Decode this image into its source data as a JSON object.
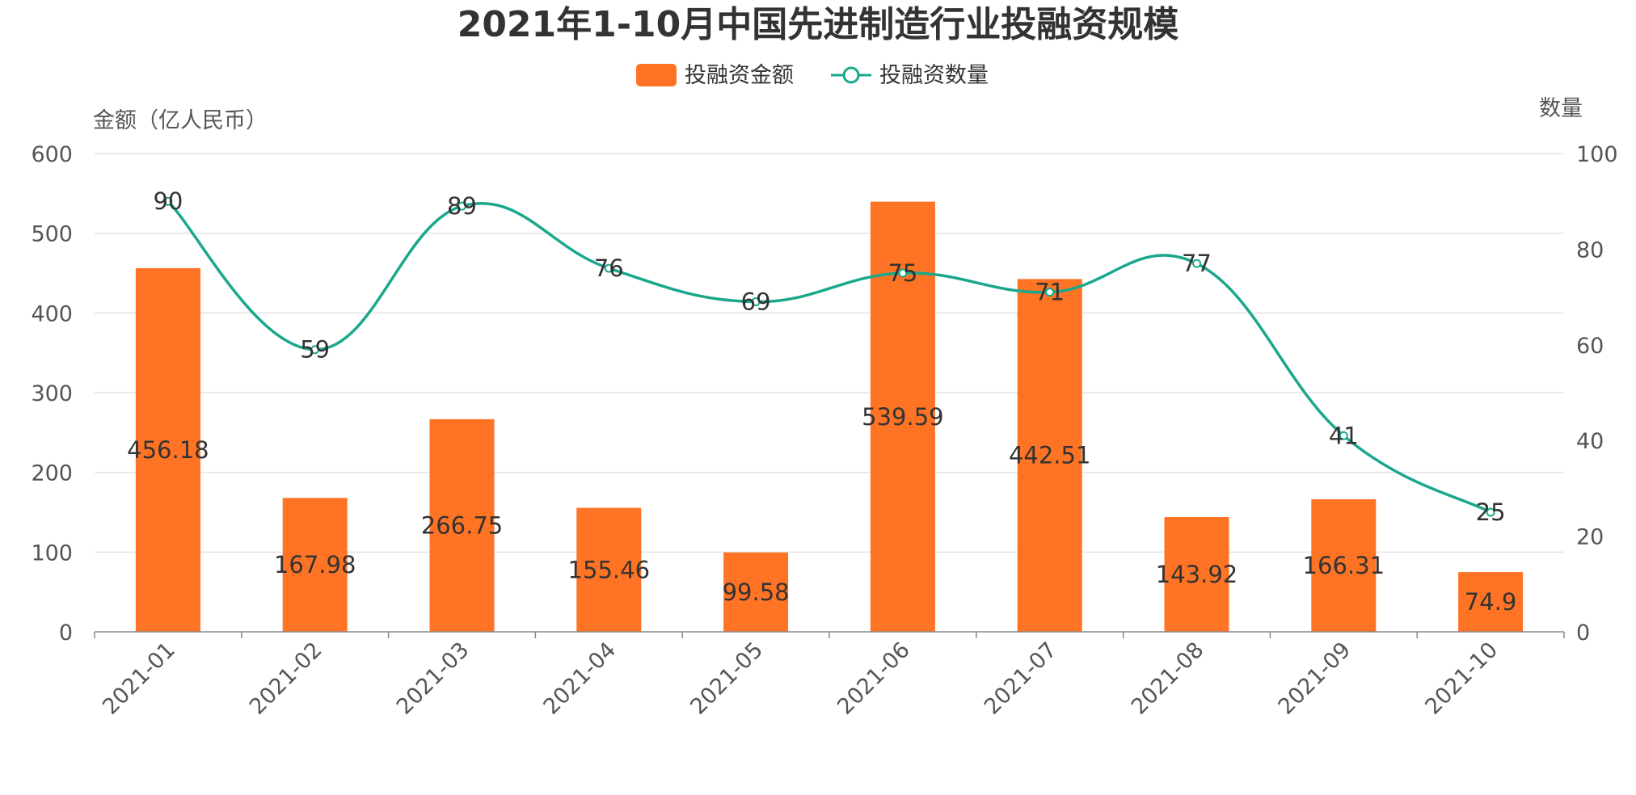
{
  "chart_data": {
    "type": "bar",
    "title": "2021年1-10月中国先进制造行业投融资规模",
    "categories": [
      "2021-01",
      "2021-02",
      "2021-03",
      "2021-04",
      "2021-05",
      "2021-06",
      "2021-07",
      "2021-08",
      "2021-09",
      "2021-10"
    ],
    "series": [
      {
        "name": "投融资金额",
        "type": "bar",
        "axis": "left",
        "color": "#ff7324",
        "values": [
          456.18,
          167.98,
          266.75,
          155.46,
          99.58,
          539.59,
          442.51,
          143.92,
          166.31,
          74.9
        ]
      },
      {
        "name": "投融资数量",
        "type": "line",
        "smooth": true,
        "axis": "right",
        "color": "#1aa88c",
        "values": [
          90,
          59,
          89,
          76,
          69,
          75,
          71,
          77,
          41,
          25
        ]
      }
    ],
    "ylabel_left": "金额（亿人民币）",
    "ylabel_right": "数量",
    "ylim_left": [
      0,
      600
    ],
    "ylim_right": [
      0,
      100
    ],
    "yticks_left": [
      "0",
      "100",
      "200",
      "300",
      "400",
      "500",
      "600"
    ],
    "yticks_right": [
      "0",
      "20",
      "40",
      "60",
      "80",
      "100"
    ],
    "grid": true,
    "legend_position": "top-center"
  }
}
